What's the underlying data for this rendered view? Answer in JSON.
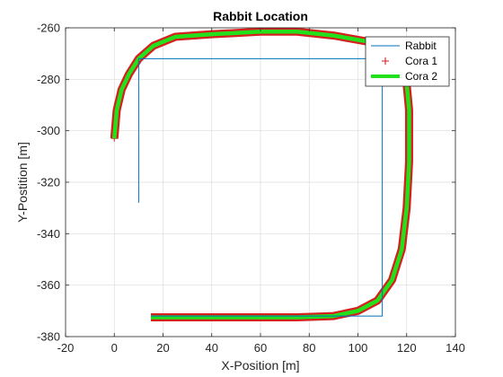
{
  "chart_data": {
    "type": "line",
    "title": "Rabbit Location",
    "xlabel": "X-Position [m]",
    "ylabel": "Y-Postition [m]",
    "xlim": [
      -20,
      140
    ],
    "ylim": [
      -380,
      -260
    ],
    "xticks": [
      -20,
      0,
      20,
      40,
      60,
      80,
      100,
      120,
      140
    ],
    "yticks": [
      -380,
      -360,
      -340,
      -320,
      -300,
      -280,
      -260
    ],
    "xtick_labels": [
      "-20",
      "0",
      "20",
      "40",
      "60",
      "80",
      "100",
      "120",
      "140"
    ],
    "ytick_labels": [
      "-380",
      "-360",
      "-340",
      "-320",
      "-300",
      "-280",
      "-260"
    ],
    "grid": true,
    "legend_placement": "top-right",
    "series": [
      {
        "name": "Rabbit",
        "style": "line",
        "color": "#0072BD",
        "x": [
          10,
          10,
          110,
          110,
          15
        ],
        "y": [
          -328,
          -272,
          -272,
          -372,
          -372
        ]
      },
      {
        "name": "Cora 1",
        "style": "marker-plus",
        "color": "#D62020",
        "x": [
          0,
          1,
          3,
          6,
          10,
          16,
          25,
          40,
          60,
          75,
          90,
          105,
          113,
          117,
          120,
          121,
          121,
          120,
          118,
          114,
          108,
          100,
          90,
          75,
          60,
          40,
          25,
          15
        ],
        "y": [
          -303,
          -292,
          -284,
          -278,
          -272,
          -267,
          -263.5,
          -262.5,
          -261.5,
          -261.5,
          -263,
          -265.5,
          -269,
          -274,
          -282,
          -292,
          -312,
          -330,
          -346,
          -358,
          -366,
          -370,
          -372,
          -372.5,
          -372.5,
          -372.5,
          -372.5,
          -372.5
        ]
      },
      {
        "name": "Cora 2",
        "style": "line",
        "color": "#22E01A",
        "x": [
          0,
          1,
          3,
          6,
          10,
          16,
          25,
          40,
          60,
          75,
          90,
          105,
          113,
          117,
          120,
          121,
          121,
          120,
          118,
          114,
          108,
          100,
          90,
          75,
          60,
          40,
          25,
          15
        ],
        "y": [
          -303,
          -292,
          -284,
          -278,
          -272,
          -267,
          -263.5,
          -262.5,
          -261.5,
          -261.5,
          -263,
          -265.5,
          -269,
          -274,
          -282,
          -292,
          -312,
          -330,
          -346,
          -358,
          -366,
          -370,
          -372,
          -372.5,
          -372.5,
          -372.5,
          -372.5,
          -372.5
        ]
      }
    ]
  }
}
